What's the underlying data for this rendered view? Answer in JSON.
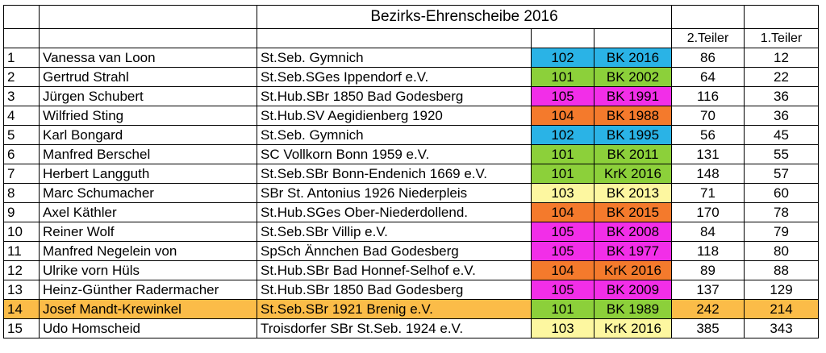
{
  "title": "Bezirks-Ehrenscheibe 2016",
  "headers": {
    "teiler2": "2.Teiler",
    "teiler1": "1.Teiler"
  },
  "colors": {
    "102": "#2ab3e6",
    "101": "#8cd03a",
    "105": "#f22ee8",
    "104": "#f47a2c",
    "103": "#fdf7a0",
    "highlight": "#fbbc48"
  },
  "rows": [
    {
      "rank": "1",
      "name": "Vanessa van Loon",
      "club": "St.Seb. Gymnich",
      "code": "102",
      "bk": "BK 2016",
      "t2": "86",
      "t1": "12",
      "hl": false
    },
    {
      "rank": "2",
      "name": "Gertrud Strahl",
      "club": "St.Seb.SGes Ippendorf e.V.",
      "code": "101",
      "bk": "BK 2002",
      "t2": "64",
      "t1": "22",
      "hl": false
    },
    {
      "rank": "3",
      "name": "Jürgen Schubert",
      "club": "St.Hub.SBr 1850 Bad Godesberg",
      "code": "105",
      "bk": "BK 1991",
      "t2": "116",
      "t1": "36",
      "hl": false
    },
    {
      "rank": "4",
      "name": "Wilfried Sting",
      "club": "St.Hub.SV Aegidienberg 1920",
      "code": "104",
      "bk": "BK 1988",
      "t2": "70",
      "t1": "36",
      "hl": false
    },
    {
      "rank": "5",
      "name": "Karl Bongard",
      "club": "St.Seb. Gymnich",
      "code": "102",
      "bk": "BK 1995",
      "t2": "56",
      "t1": "45",
      "hl": false
    },
    {
      "rank": "6",
      "name": "Manfred Berschel",
      "club": "SC Vollkorn Bonn 1959 e.V.",
      "code": "101",
      "bk": "BK 2011",
      "t2": "131",
      "t1": "55",
      "hl": false
    },
    {
      "rank": "7",
      "name": "Herbert Langguth",
      "club": "St.Seb.SBr Bonn-Endenich 1669 e.V.",
      "code": "101",
      "bk": "KrK 2016",
      "t2": "148",
      "t1": "57",
      "hl": false
    },
    {
      "rank": "8",
      "name": "Marc Schumacher",
      "club": "SBr St. Antonius 1926  Niederpleis",
      "code": "103",
      "bk": "BK 2013",
      "t2": "71",
      "t1": "60",
      "hl": false
    },
    {
      "rank": "9",
      "name": "Axel Käthler",
      "club": "St.Hub.SGes Ober-Niederdollend.",
      "code": "104",
      "bk": "BK 2015",
      "t2": "170",
      "t1": "78",
      "hl": false
    },
    {
      "rank": "10",
      "name": "Reiner Wolf",
      "club": "St.Seb.SBr Villip e.V.",
      "code": "105",
      "bk": "BK 2008",
      "t2": "84",
      "t1": "79",
      "hl": false
    },
    {
      "rank": "11",
      "name": "Manfred Negelein von",
      "club": "SpSch Ännchen Bad Godesberg",
      "code": "105",
      "bk": "BK 1977",
      "t2": "118",
      "t1": "80",
      "hl": false
    },
    {
      "rank": "12",
      "name": "Ulrike vorn Hüls",
      "club": "St.Hub.SBr Bad Honnef-Selhof e.V.",
      "code": "104",
      "bk": "KrK 2016",
      "t2": "89",
      "t1": "88",
      "hl": false
    },
    {
      "rank": "13",
      "name": "Heinz-Günther Radermacher",
      "club": "St.Hub.SBr 1850 Bad Godesberg",
      "code": "105",
      "bk": "BK 2009",
      "t2": "137",
      "t1": "129",
      "hl": false
    },
    {
      "rank": "14",
      "name": "Josef Mandt-Krewinkel",
      "club": "St.Seb.SBr 1921 Brenig e.V.",
      "code": "101",
      "bk": "BK 1989",
      "t2": "242",
      "t1": "214",
      "hl": true
    },
    {
      "rank": "15",
      "name": "Udo Homscheid",
      "club": "Troisdorfer SBr St.Seb. 1924 e.V.",
      "code": "103",
      "bk": "KrK 2016",
      "t2": "385",
      "t1": "343",
      "hl": false
    }
  ]
}
